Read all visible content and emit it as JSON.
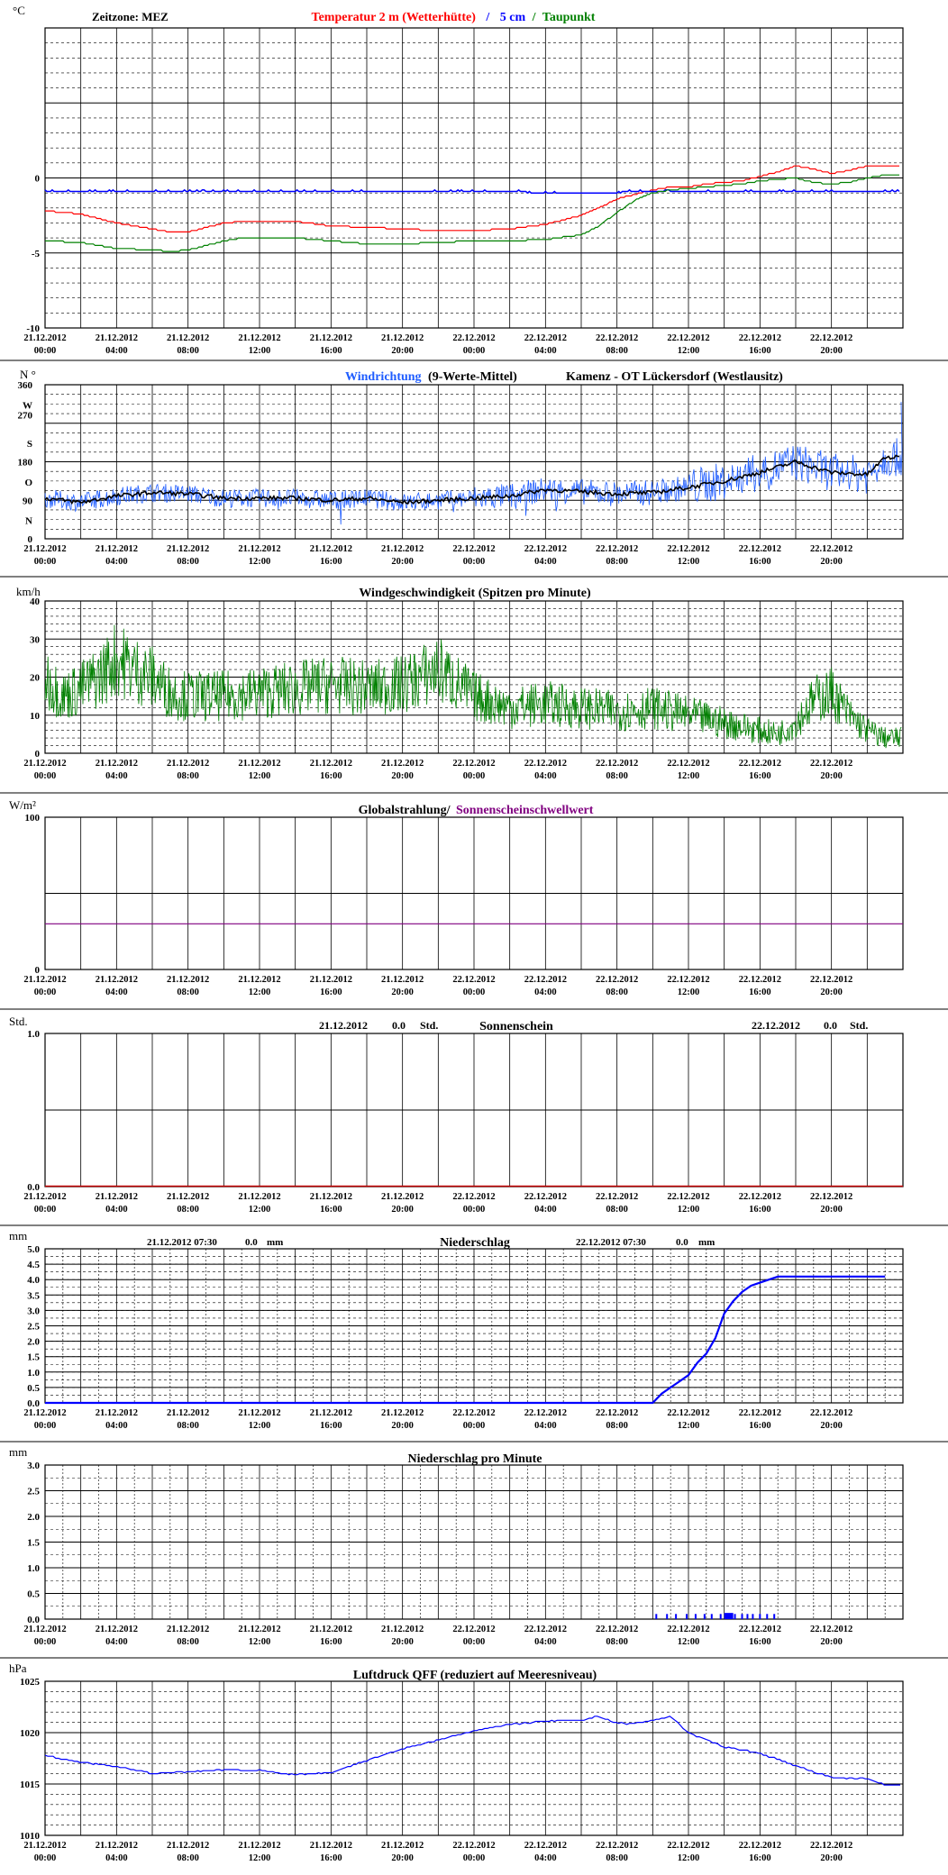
{
  "x_ticks": [
    "21.12.2012\n00:00",
    "21.12.2012\n04:00",
    "21.12.2012\n08:00",
    "21.12.2012\n12:00",
    "21.12.2012\n16:00",
    "21.12.2012\n20:00",
    "22.12.2012\n00:00",
    "22.12.2012\n04:00",
    "22.12.2012\n08:00",
    "22.12.2012\n12:00",
    "22.12.2012\n16:00",
    "22.12.2012\n20:00"
  ],
  "colors": {
    "temp": "#ff0000",
    "soil": "#0000ff",
    "dew": "#008000",
    "winddir": "#1e5cff",
    "winddir_mean": "#000000",
    "wind": "#008000",
    "radiation": "#800080",
    "sun": "#c00000",
    "precip": "#0000ff",
    "pressure": "#0000ff"
  },
  "panels": {
    "temp": {
      "unit": "°C",
      "zone_label": "Zeitzone: MEZ",
      "title_temp": "Temperatur 2 m (Wetterhütte)",
      "title_sep1": "/",
      "title_soil": "5 cm",
      "title_sep2": "/",
      "title_dew": "Taupunkt",
      "y_ticks": [
        "0",
        "-5",
        "-10"
      ]
    },
    "winddir": {
      "unit": "N °",
      "title_dir": "Windrichtung",
      "title_mean": "(9-Werte-Mittel)",
      "station": "Kamenz - OT Lückersdorf (Westlausitz)",
      "y_ticks": [
        "360",
        "W",
        "270",
        "S",
        "180",
        "O",
        "90",
        "N",
        "0"
      ]
    },
    "wind": {
      "unit": "km/h",
      "title": "Windgeschwindigkeit (Spitzen pro Minute)",
      "y_ticks": [
        "40",
        "30",
        "20",
        "10",
        "0"
      ]
    },
    "radiation": {
      "unit": "W/m²",
      "title_a": "Globalstrahlung/",
      "title_b": "Sonnenscheinschwellwert",
      "y_ticks": [
        "100",
        "0"
      ]
    },
    "sun": {
      "unit": "Std.",
      "title": "Sonnenschein",
      "day1_date": "21.12.2012",
      "day1_value": "0.0",
      "day1_unit": "Std.",
      "day2_date": "22.12.2012",
      "day2_value": "0.0",
      "day2_unit": "Std.",
      "y_ticks": [
        "1.0",
        "0.0"
      ]
    },
    "precip": {
      "unit": "mm",
      "title": "Niederschlag",
      "day1_date": "21.12.2012 07:30",
      "day1_value": "0.0",
      "day1_unit": "mm",
      "day2_date": "22.12.2012 07:30",
      "day2_value": "0.0",
      "day2_unit": "mm",
      "y_ticks": [
        "5.0",
        "4.5",
        "4.0",
        "3.5",
        "3.0",
        "2.5",
        "2.0",
        "1.5",
        "1.0",
        "0.5",
        "0.0"
      ]
    },
    "precip_min": {
      "unit": "mm",
      "title": "Niederschlag pro Minute",
      "y_ticks": [
        "3.0",
        "2.5",
        "2.0",
        "1.5",
        "1.0",
        "0.5",
        "0.0"
      ]
    },
    "pressure": {
      "unit": "hPa",
      "title": "Luftdruck QFF (reduziert auf Meeresniveau)",
      "y_ticks": [
        "1025",
        "1020",
        "1015",
        "1010"
      ]
    }
  },
  "chart_data": [
    {
      "type": "line",
      "title": "Temperatur 2 m (Wetterhütte) / 5 cm / Taupunkt",
      "ylabel": "°C",
      "ylim": [
        -10,
        10
      ],
      "x_unit": "hours since 21.12.2012 00:00",
      "x": [
        0,
        2,
        4,
        6,
        7,
        8,
        9,
        10,
        11,
        12,
        14,
        16,
        18,
        20,
        22,
        24,
        26,
        28,
        30,
        31,
        32,
        33,
        34,
        35,
        36,
        37,
        38,
        39,
        40,
        41,
        42,
        43,
        44,
        45,
        46,
        47
      ],
      "series": [
        {
          "name": "Temperatur 2 m (Wetterhütte)",
          "values": [
            -2.2,
            -2.4,
            -3,
            -3.4,
            -3.6,
            -3.6,
            -3.3,
            -3,
            -2.9,
            -2.9,
            -2.9,
            -3.2,
            -3.3,
            -3.4,
            -3.5,
            -3.5,
            -3.4,
            -3.1,
            -2.5,
            -2,
            -1.4,
            -1.1,
            -0.8,
            -0.6,
            -0.6,
            -0.4,
            -0.3,
            -0.2,
            0.1,
            0.4,
            0.8,
            0.6,
            0.3,
            0.5,
            0.8,
            0.8
          ]
        },
        {
          "name": "5 cm",
          "values": [
            -0.9,
            -0.9,
            -0.9,
            -0.9,
            -0.9,
            -0.9,
            -0.9,
            -0.9,
            -0.9,
            -0.9,
            -0.9,
            -0.9,
            -0.9,
            -0.9,
            -0.9,
            -0.9,
            -0.9,
            -1,
            -1,
            -1,
            -1,
            -0.9,
            -0.9,
            -0.9,
            -0.9,
            -0.9,
            -0.9,
            -0.9,
            -0.9,
            -0.9,
            -0.9,
            -0.9,
            -0.9,
            -0.9,
            -0.9,
            -0.9
          ]
        },
        {
          "name": "Taupunkt",
          "values": [
            -4.2,
            -4.3,
            -4.7,
            -4.8,
            -4.9,
            -4.8,
            -4.5,
            -4.2,
            -4,
            -4,
            -4,
            -4.2,
            -4.4,
            -4.4,
            -4.3,
            -4.2,
            -4.2,
            -4.1,
            -3.8,
            -3.2,
            -2.3,
            -1.5,
            -1,
            -0.8,
            -0.7,
            -0.6,
            -0.5,
            -0.4,
            -0.2,
            -0.1,
            0,
            -0.3,
            -0.4,
            -0.3,
            0,
            0.2
          ]
        }
      ]
    },
    {
      "type": "line",
      "title": "Windrichtung (9-Werte-Mittel)",
      "ylabel": "N °",
      "ylim": [
        0,
        360
      ],
      "x_unit": "hours since 21.12.2012 00:00",
      "x": [
        0,
        2,
        4,
        6,
        8,
        10,
        12,
        14,
        16,
        18,
        20,
        22,
        24,
        26,
        28,
        30,
        32,
        34,
        36,
        38,
        40,
        42,
        44,
        46,
        47
      ],
      "series": [
        {
          "name": "9-Werte-Mittel",
          "values": [
            95,
            85,
            100,
            108,
            105,
            95,
            95,
            95,
            90,
            95,
            85,
            90,
            95,
            100,
            115,
            110,
            105,
            108,
            120,
            135,
            155,
            180,
            155,
            150,
            190
          ]
        }
      ]
    },
    {
      "type": "line",
      "title": "Windgeschwindigkeit (Spitzen pro Minute)",
      "ylabel": "km/h",
      "ylim": [
        0,
        40
      ],
      "x_unit": "hours since 21.12.2012 00:00",
      "x": [
        0,
        1,
        2,
        3,
        4,
        5,
        6,
        7,
        8,
        10,
        12,
        14,
        16,
        18,
        20,
        22,
        24,
        26,
        28,
        30,
        32,
        34,
        36,
        38,
        40,
        41,
        42,
        43,
        44,
        45,
        46,
        47
      ],
      "series": [
        {
          "name": "Windgeschwindigkeit",
          "values": [
            20,
            15,
            17,
            20,
            25,
            22,
            20,
            16,
            15,
            15,
            16,
            17,
            18,
            17,
            18,
            22,
            15,
            12,
            13,
            12,
            11,
            12,
            10,
            8,
            6,
            5,
            8,
            14,
            16,
            10,
            6,
            4
          ]
        }
      ]
    },
    {
      "type": "line",
      "title": "Globalstrahlung/ Sonnenscheinschwellwert",
      "ylabel": "W/m²",
      "ylim": [
        0,
        100
      ],
      "x_unit": "hours since 21.12.2012 00:00",
      "x": [
        0,
        47
      ],
      "series": [
        {
          "name": "Sonnenscheinschwellwert",
          "values": [
            30,
            30
          ]
        }
      ]
    },
    {
      "type": "line",
      "title": "Sonnenschein",
      "ylabel": "Std.",
      "ylim": [
        0,
        1
      ],
      "x_unit": "hours since 21.12.2012 00:00",
      "x": [
        0,
        47
      ],
      "series": [
        {
          "name": "Sonnenschein",
          "values": [
            0,
            0
          ]
        }
      ]
    },
    {
      "type": "line",
      "title": "Niederschlag",
      "ylabel": "mm",
      "ylim": [
        0,
        5
      ],
      "x_unit": "hours since 21.12.2012 00:00",
      "x": [
        0,
        34,
        34.5,
        35,
        35.5,
        36,
        36.5,
        37,
        37.5,
        38,
        38.5,
        39,
        39.5,
        40,
        40.5,
        41,
        42,
        43,
        44,
        45,
        46,
        47
      ],
      "series": [
        {
          "name": "Niederschlag",
          "values": [
            0,
            0,
            0.3,
            0.5,
            0.7,
            0.9,
            1.3,
            1.6,
            2.1,
            2.9,
            3.3,
            3.6,
            3.8,
            3.9,
            4.0,
            4.1,
            4.1,
            4.1,
            4.1,
            4.1,
            4.1,
            4.1
          ]
        }
      ]
    },
    {
      "type": "bar",
      "title": "Niederschlag pro Minute",
      "ylabel": "mm",
      "ylim": [
        0,
        3
      ],
      "x_unit": "hours since 21.12.2012 00:00",
      "x": [
        34.2,
        34.8,
        35.3,
        35.9,
        36.4,
        36.9,
        37.3,
        37.8,
        38.2,
        38.6,
        39.0,
        39.3,
        39.6,
        40.0,
        40.4,
        40.8
      ],
      "series": [
        {
          "name": "Niederschlag pro Minute",
          "values": [
            0.1,
            0.1,
            0.1,
            0.1,
            0.1,
            0.1,
            0.1,
            0.1,
            0.1,
            0.1,
            0.1,
            0.1,
            0.1,
            0.1,
            0.1,
            0.1
          ]
        }
      ]
    },
    {
      "type": "line",
      "title": "Luftdruck QFF (reduziert auf Meeresniveau)",
      "ylabel": "hPa",
      "ylim": [
        1010,
        1025
      ],
      "x_unit": "hours since 21.12.2012 00:00",
      "x": [
        0,
        2,
        4,
        6,
        8,
        10,
        12,
        14,
        16,
        18,
        20,
        22,
        24,
        26,
        28,
        30,
        31,
        32,
        33,
        34,
        35,
        36,
        38,
        40,
        42,
        44,
        46,
        47
      ],
      "series": [
        {
          "name": "Luftdruck",
          "values": [
            1017.8,
            1017.1,
            1016.7,
            1016.0,
            1016.2,
            1016.4,
            1016.3,
            1015.9,
            1016.1,
            1017.3,
            1018.4,
            1019.3,
            1020.2,
            1020.8,
            1021.1,
            1021.2,
            1021.6,
            1020.9,
            1020.9,
            1021.2,
            1021.6,
            1020.0,
            1018.6,
            1018.0,
            1016.8,
            1015.6,
            1015.5,
            1014.9
          ]
        }
      ]
    }
  ]
}
